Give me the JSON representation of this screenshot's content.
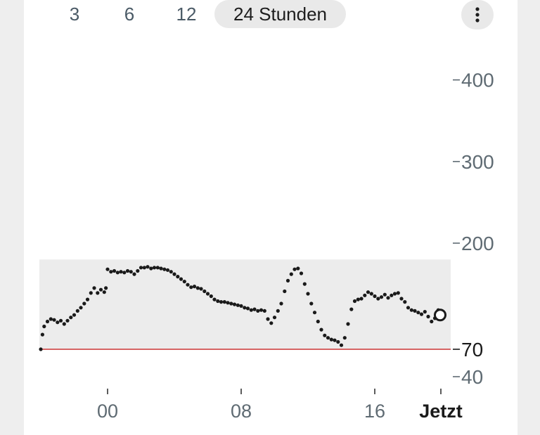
{
  "toolbar": {
    "ranges": [
      "3",
      "6",
      "12",
      "24 Stunden"
    ],
    "selected": "24 Stunden",
    "menu_icon": "more-vert-icon"
  },
  "colors": {
    "target_band": "#ececec",
    "low_line": "#cc3333",
    "points": "#1a1a1a",
    "axis_text": "#5f6b73"
  },
  "chart_data": {
    "type": "scatter",
    "title": "",
    "xlabel": "",
    "ylabel": "",
    "x_unit": "hours",
    "x_range": [
      -6,
      24
    ],
    "y_range": [
      40,
      440
    ],
    "y_ticks": [
      "400",
      "300",
      "200",
      "70",
      "40"
    ],
    "y_tick_values": [
      400,
      300,
      200,
      70,
      40
    ],
    "x_ticks": [
      "00",
      "08",
      "16",
      "Jetzt"
    ],
    "x_tick_values": [
      0,
      8,
      16,
      20
    ],
    "target_range": [
      70,
      180
    ],
    "low_limit": 70,
    "current_point": {
      "x": 20.0,
      "y": 112
    },
    "points": [
      [
        -4.0,
        70
      ],
      [
        -3.9,
        88
      ],
      [
        -3.8,
        98
      ],
      [
        -3.6,
        104
      ],
      [
        -3.4,
        107
      ],
      [
        -3.2,
        106
      ],
      [
        -3.0,
        103
      ],
      [
        -2.8,
        105
      ],
      [
        -2.6,
        101
      ],
      [
        -2.4,
        105
      ],
      [
        -2.2,
        109
      ],
      [
        -2.0,
        112
      ],
      [
        -1.8,
        117
      ],
      [
        -1.6,
        121
      ],
      [
        -1.4,
        126
      ],
      [
        -1.2,
        131
      ],
      [
        -1.0,
        139
      ],
      [
        -0.8,
        145
      ],
      [
        -0.6,
        139
      ],
      [
        -0.4,
        143
      ],
      [
        -0.2,
        140
      ],
      [
        -0.1,
        145
      ],
      [
        0.0,
        168
      ],
      [
        0.2,
        165
      ],
      [
        0.4,
        166
      ],
      [
        0.6,
        164
      ],
      [
        0.8,
        165
      ],
      [
        1.0,
        164
      ],
      [
        1.2,
        166
      ],
      [
        1.4,
        165
      ],
      [
        1.6,
        162
      ],
      [
        1.8,
        166
      ],
      [
        2.0,
        170
      ],
      [
        2.2,
        170
      ],
      [
        2.4,
        171
      ],
      [
        2.6,
        169
      ],
      [
        2.8,
        170
      ],
      [
        3.0,
        170
      ],
      [
        3.2,
        169
      ],
      [
        3.4,
        168
      ],
      [
        3.6,
        167
      ],
      [
        3.8,
        165
      ],
      [
        4.0,
        162
      ],
      [
        4.2,
        159
      ],
      [
        4.4,
        156
      ],
      [
        4.6,
        153
      ],
      [
        4.8,
        149
      ],
      [
        5.0,
        146
      ],
      [
        5.2,
        147
      ],
      [
        5.4,
        145
      ],
      [
        5.6,
        144
      ],
      [
        5.8,
        141
      ],
      [
        6.0,
        138
      ],
      [
        6.2,
        135
      ],
      [
        6.4,
        131
      ],
      [
        6.6,
        129
      ],
      [
        6.8,
        128
      ],
      [
        7.0,
        128
      ],
      [
        7.2,
        127
      ],
      [
        7.4,
        126
      ],
      [
        7.6,
        125
      ],
      [
        7.8,
        124
      ],
      [
        8.0,
        123
      ],
      [
        8.2,
        121
      ],
      [
        8.4,
        120
      ],
      [
        8.6,
        118
      ],
      [
        8.8,
        119
      ],
      [
        9.0,
        117
      ],
      [
        9.2,
        118
      ],
      [
        9.4,
        117
      ],
      [
        9.6,
        107
      ],
      [
        9.8,
        102
      ],
      [
        10.0,
        109
      ],
      [
        10.2,
        117
      ],
      [
        10.4,
        126
      ],
      [
        10.6,
        141
      ],
      [
        10.8,
        154
      ],
      [
        11.0,
        162
      ],
      [
        11.2,
        168
      ],
      [
        11.4,
        169
      ],
      [
        11.6,
        163
      ],
      [
        11.8,
        150
      ],
      [
        12.0,
        138
      ],
      [
        12.2,
        126
      ],
      [
        12.4,
        115
      ],
      [
        12.6,
        104
      ],
      [
        12.8,
        94
      ],
      [
        13.0,
        87
      ],
      [
        13.2,
        84
      ],
      [
        13.4,
        82
      ],
      [
        13.6,
        81
      ],
      [
        13.8,
        79
      ],
      [
        14.0,
        75
      ],
      [
        14.2,
        84
      ],
      [
        14.4,
        101
      ],
      [
        14.6,
        119
      ],
      [
        14.8,
        129
      ],
      [
        15.0,
        131
      ],
      [
        15.2,
        132
      ],
      [
        15.4,
        136
      ],
      [
        15.6,
        140
      ],
      [
        15.8,
        138
      ],
      [
        16.0,
        135
      ],
      [
        16.2,
        132
      ],
      [
        16.4,
        134
      ],
      [
        16.6,
        137
      ],
      [
        16.8,
        133
      ],
      [
        17.0,
        136
      ],
      [
        17.2,
        138
      ],
      [
        17.4,
        139
      ],
      [
        17.6,
        132
      ],
      [
        17.8,
        128
      ],
      [
        18.0,
        121
      ],
      [
        18.2,
        118
      ],
      [
        18.4,
        117
      ],
      [
        18.6,
        115
      ],
      [
        18.8,
        113
      ],
      [
        19.0,
        116
      ],
      [
        19.2,
        110
      ],
      [
        19.4,
        104
      ],
      [
        19.6,
        108
      ],
      [
        19.8,
        118
      ]
    ]
  }
}
